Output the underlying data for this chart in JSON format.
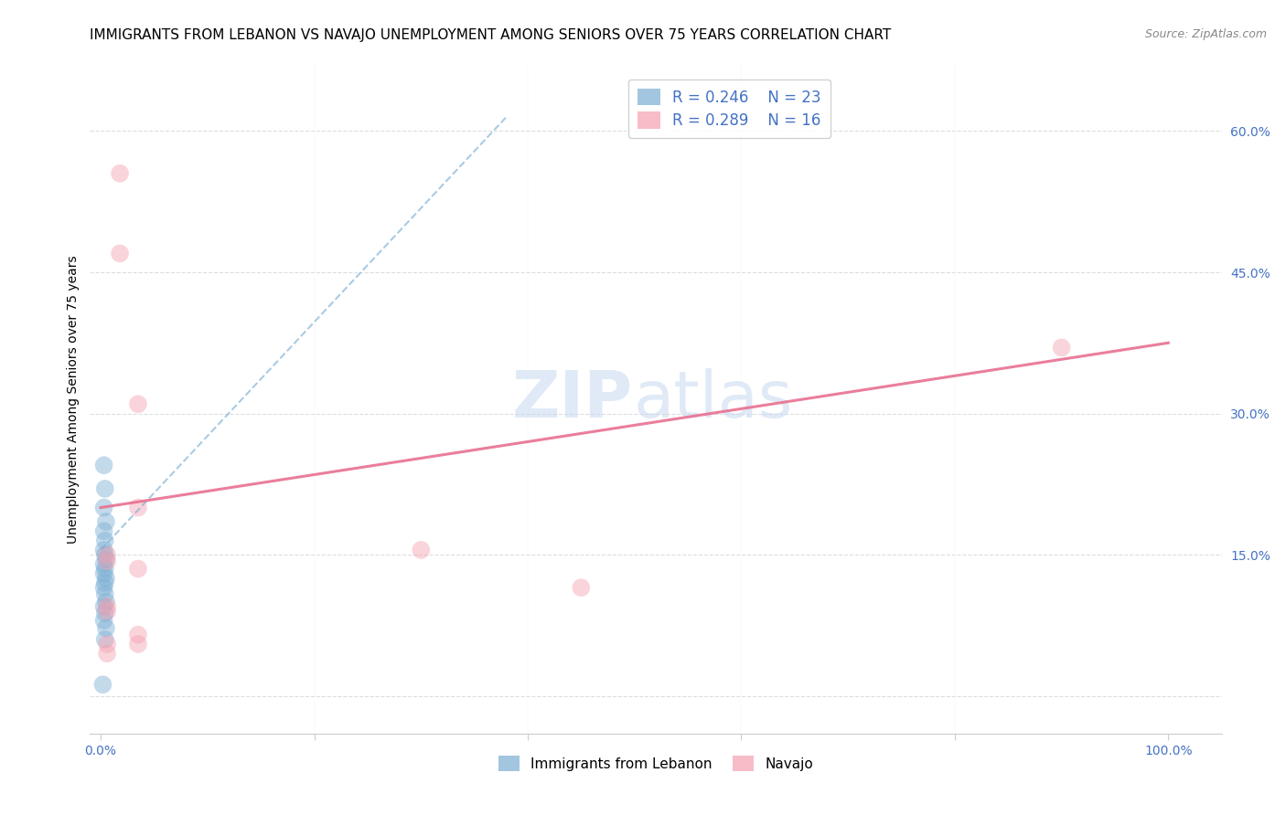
{
  "title": "IMMIGRANTS FROM LEBANON VS NAVAJO UNEMPLOYMENT AMONG SENIORS OVER 75 YEARS CORRELATION CHART",
  "source": "Source: ZipAtlas.com",
  "xlabel_blue": "Immigrants from Lebanon",
  "xlabel_pink": "Navajo",
  "ylabel": "Unemployment Among Seniors over 75 years",
  "x_ticks": [
    0.0,
    0.2,
    0.4,
    0.6,
    0.8,
    1.0
  ],
  "x_tick_labels": [
    "0.0%",
    "",
    "",
    "",
    "",
    "100.0%"
  ],
  "y_ticks": [
    0.0,
    0.15,
    0.3,
    0.45,
    0.6
  ],
  "y_tick_labels": [
    "",
    "15.0%",
    "30.0%",
    "45.0%",
    "60.0%"
  ],
  "xlim": [
    -0.01,
    1.05
  ],
  "ylim": [
    -0.04,
    0.67
  ],
  "legend_R_blue": "R = 0.246",
  "legend_N_blue": "N = 23",
  "legend_R_pink": "R = 0.289",
  "legend_N_pink": "N = 16",
  "blue_scatter_x": [
    0.003,
    0.004,
    0.003,
    0.005,
    0.003,
    0.004,
    0.003,
    0.004,
    0.005,
    0.003,
    0.004,
    0.003,
    0.005,
    0.004,
    0.003,
    0.004,
    0.005,
    0.003,
    0.004,
    0.003,
    0.005,
    0.004,
    0.002
  ],
  "blue_scatter_y": [
    0.245,
    0.22,
    0.2,
    0.185,
    0.175,
    0.165,
    0.155,
    0.15,
    0.145,
    0.14,
    0.135,
    0.13,
    0.125,
    0.12,
    0.115,
    0.108,
    0.1,
    0.095,
    0.088,
    0.08,
    0.072,
    0.06,
    0.012
  ],
  "pink_scatter_x": [
    0.018,
    0.018,
    0.035,
    0.035,
    0.035,
    0.035,
    0.035,
    0.006,
    0.006,
    0.006,
    0.006,
    0.006,
    0.3,
    0.45,
    0.9,
    0.006
  ],
  "pink_scatter_y": [
    0.555,
    0.47,
    0.31,
    0.2,
    0.135,
    0.065,
    0.055,
    0.15,
    0.143,
    0.09,
    0.055,
    0.045,
    0.155,
    0.115,
    0.37,
    0.095
  ],
  "blue_line_x": [
    0.0,
    0.38
  ],
  "blue_line_y": [
    0.155,
    0.615
  ],
  "pink_line_x": [
    0.0,
    1.0
  ],
  "pink_line_y": [
    0.2,
    0.375
  ],
  "watermark_zip": "ZIP",
  "watermark_atlas": "atlas",
  "scatter_size": 200,
  "scatter_alpha": 0.45,
  "blue_color": "#7BAFD4",
  "pink_color": "#F4A0B0",
  "blue_line_color": "#7BAFD4",
  "pink_line_color": "#E87090",
  "legend_text_color": "#4472C4",
  "grid_color": "#DDDDDD",
  "title_fontsize": 11,
  "axis_label_fontsize": 10,
  "tick_fontsize": 10,
  "watermark_fontsize": 52
}
